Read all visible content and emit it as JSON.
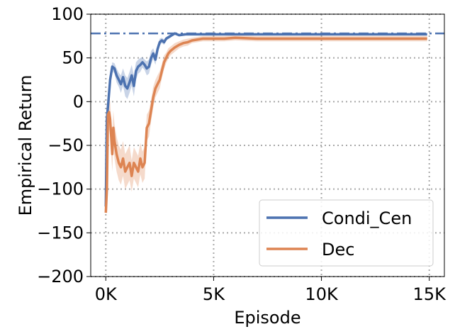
{
  "chart_data": {
    "type": "line",
    "xlabel": "Episode",
    "ylabel": "Empirical Return",
    "xlim": [
      -700,
      15700
    ],
    "ylim": [
      -200,
      100
    ],
    "xticks": [
      0,
      5000,
      10000,
      15000
    ],
    "xtick_labels": [
      "0K",
      "5K",
      "10K",
      "15K"
    ],
    "yticks": [
      -200,
      -150,
      -100,
      -50,
      0,
      50,
      100
    ],
    "ytick_labels": [
      "−200",
      "−150",
      "−100",
      "−50",
      "0",
      "50",
      "100"
    ],
    "grid": true,
    "legend_position": "lower-right",
    "reference_line": {
      "y": 78,
      "color": "#4c72b0",
      "style": "dash-dot"
    },
    "series": [
      {
        "name": "Condi_Cen",
        "color": "#4c72b0",
        "x": [
          0,
          50,
          120,
          200,
          300,
          400,
          500,
          600,
          700,
          800,
          900,
          1000,
          1100,
          1200,
          1300,
          1400,
          1500,
          1600,
          1700,
          1800,
          1900,
          2000,
          2100,
          2200,
          2300,
          2400,
          2500,
          2600,
          2700,
          2800,
          3000,
          3200,
          3400,
          3700,
          4000,
          4500,
          5000,
          6000,
          7000,
          8000,
          9000,
          10000,
          11000,
          12000,
          13000,
          14000,
          14900
        ],
        "y": [
          -120,
          -20,
          0,
          25,
          40,
          38,
          30,
          25,
          20,
          28,
          18,
          15,
          22,
          30,
          18,
          35,
          40,
          42,
          45,
          42,
          38,
          40,
          50,
          55,
          48,
          60,
          68,
          70,
          68,
          72,
          75,
          78,
          76,
          77,
          77,
          77,
          77,
          77,
          77,
          77,
          77,
          77,
          77,
          77,
          77,
          77,
          77
        ],
        "band": [
          0,
          3,
          5,
          5,
          5,
          6,
          8,
          8,
          10,
          10,
          12,
          12,
          12,
          12,
          12,
          10,
          8,
          8,
          6,
          6,
          8,
          8,
          8,
          6,
          6,
          5,
          4,
          3,
          3,
          2,
          2,
          1,
          1,
          1,
          1,
          1,
          1,
          1,
          1,
          1,
          1,
          1,
          1,
          1,
          1,
          1,
          1
        ]
      },
      {
        "name": "Dec",
        "color": "#dd8452",
        "x": [
          0,
          50,
          100,
          150,
          200,
          250,
          300,
          350,
          400,
          500,
          600,
          700,
          800,
          900,
          1000,
          1100,
          1200,
          1300,
          1400,
          1500,
          1600,
          1700,
          1800,
          1900,
          2000,
          2100,
          2200,
          2300,
          2400,
          2500,
          2600,
          2700,
          2800,
          2900,
          3000,
          3200,
          3400,
          3600,
          3800,
          4000,
          4500,
          5000,
          5500,
          6000,
          7000,
          8000,
          9000,
          10000,
          11000,
          12000,
          13000,
          14000,
          14900
        ],
        "y": [
          -127,
          -100,
          -15,
          -12,
          -20,
          -40,
          -60,
          -30,
          -45,
          -60,
          -70,
          -75,
          -65,
          -80,
          -75,
          -70,
          -85,
          -70,
          -75,
          -80,
          -65,
          -75,
          -70,
          -30,
          -25,
          -10,
          5,
          15,
          20,
          25,
          35,
          45,
          50,
          55,
          58,
          62,
          65,
          67,
          68,
          70,
          72,
          72,
          72,
          73,
          72,
          72,
          72,
          72,
          72,
          72,
          72,
          72,
          72
        ],
        "band": [
          5,
          10,
          20,
          20,
          20,
          20,
          20,
          20,
          20,
          20,
          20,
          20,
          20,
          20,
          20,
          20,
          18,
          18,
          18,
          18,
          18,
          18,
          18,
          15,
          15,
          12,
          12,
          10,
          10,
          10,
          8,
          8,
          6,
          6,
          5,
          5,
          4,
          4,
          4,
          3,
          3,
          3,
          3,
          3,
          3,
          3,
          3,
          3,
          3,
          3,
          3,
          3,
          3
        ]
      }
    ]
  }
}
